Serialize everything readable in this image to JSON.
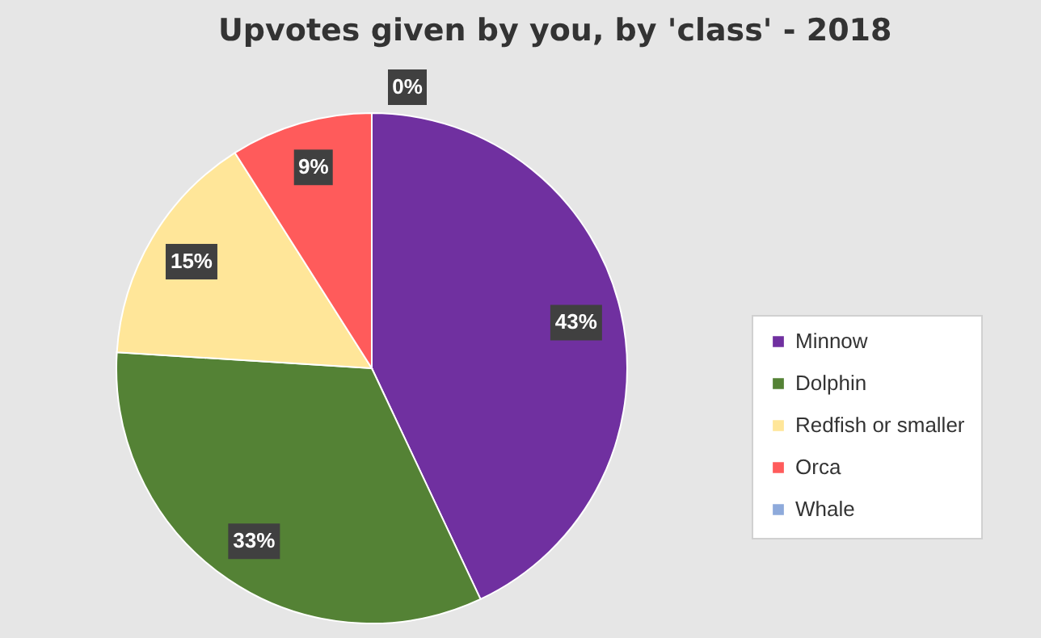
{
  "chart_data": {
    "type": "pie",
    "title": "Upvotes given by you, by 'class' - 2018",
    "categories": [
      "Minnow",
      "Dolphin",
      "Redfish or smaller",
      "Orca",
      "Whale"
    ],
    "values": [
      43,
      33,
      15,
      9,
      0
    ],
    "colors": [
      "#7030a0",
      "#548235",
      "#ffe699",
      "#ff5b5b",
      "#8eaadb"
    ],
    "value_labels": [
      "43%",
      "33%",
      "15%",
      "9%",
      "0%"
    ],
    "legend": "right"
  }
}
